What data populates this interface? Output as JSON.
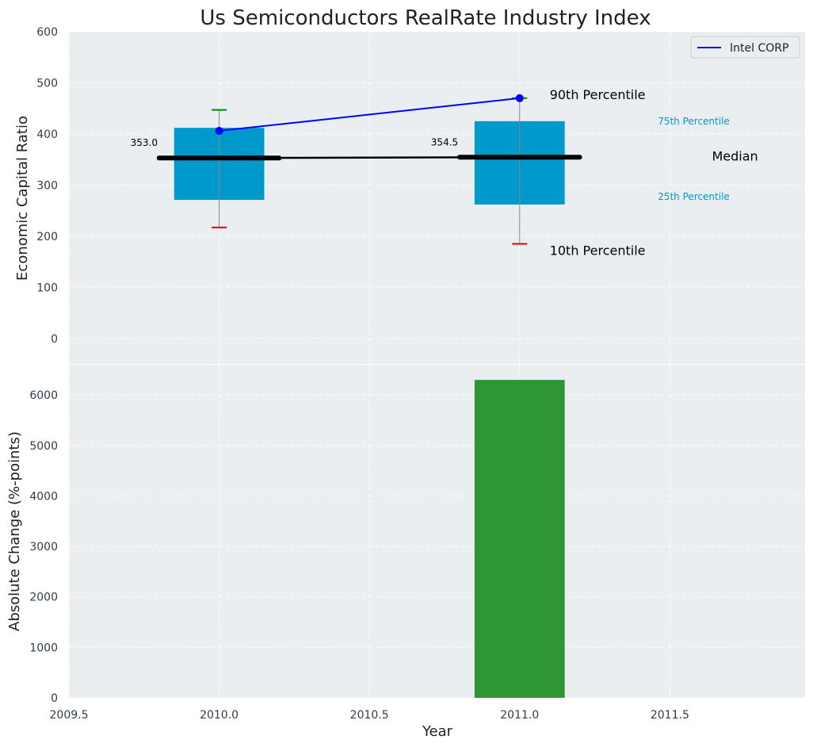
{
  "chart_data": [
    {
      "type": "box-percentile",
      "title": "Us Semiconductors RealRate Industry Index",
      "ylabel": "Economic Capital Ratio",
      "ylim": [
        -50,
        600
      ],
      "yticks": [
        0,
        100,
        200,
        300,
        400,
        500,
        600
      ],
      "grid": true,
      "legend": {
        "placement": "top-right",
        "entries": [
          "Intel CORP"
        ]
      },
      "colors": {
        "box": "#0099cc",
        "median": "#000000",
        "p90_cap": "#008800",
        "p10_cap": "#dd0000",
        "company_line": "#0000ff",
        "whisker": "#888888"
      },
      "boxes": [
        {
          "x": 2010.0,
          "p10": 217,
          "p25": 271,
          "median": 353.0,
          "p75": 412,
          "p90": 447,
          "median_label": "353.0"
        },
        {
          "x": 2011.0,
          "p10": 185,
          "p25": 262,
          "median": 354.5,
          "p75": 425,
          "p90": 470,
          "median_label": "354.5"
        }
      ],
      "series": [
        {
          "name": "Intel CORP",
          "x": [
            2010.0,
            2011.0
          ],
          "values": [
            406,
            470
          ]
        }
      ],
      "annotations": {
        "p90": "90th Percentile",
        "p75": "75th Percentile",
        "median": "Median",
        "p25": "25th Percentile",
        "p10": "10th Percentile"
      }
    },
    {
      "type": "bar",
      "ylabel": "Absolute Change (%-points)",
      "xlabel": "Year",
      "xlim": [
        2009.5,
        2011.95
      ],
      "xticks": [
        2009.5,
        2010.0,
        2010.5,
        2011.0,
        2011.5
      ],
      "xtick_labels": [
        "2009.5",
        "2010.0",
        "2010.5",
        "2011.0",
        "2011.5"
      ],
      "ylim": [
        0,
        6600
      ],
      "yticks": [
        0,
        1000,
        2000,
        3000,
        4000,
        5000,
        6000
      ],
      "grid": true,
      "color": "#2e9632",
      "x": [
        2011.0
      ],
      "values": [
        6300
      ]
    }
  ]
}
